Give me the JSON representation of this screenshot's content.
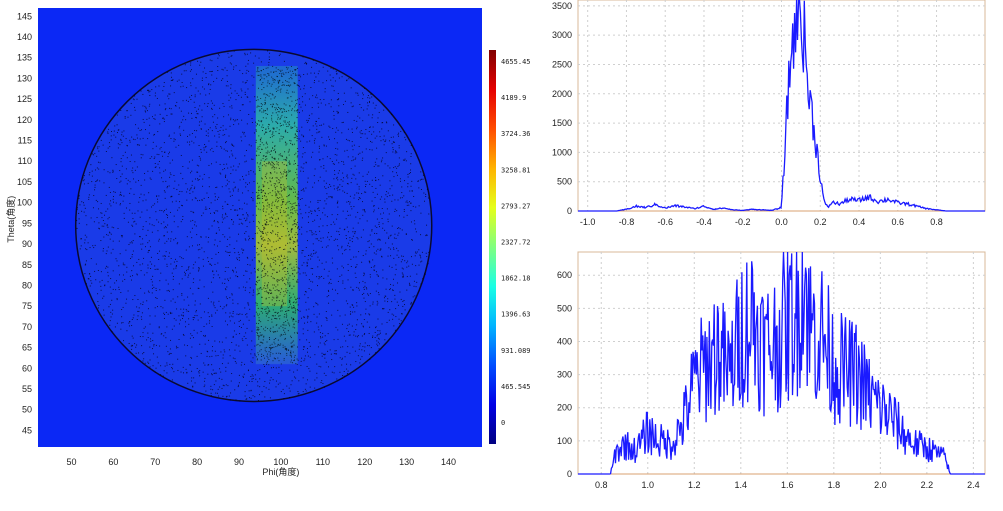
{
  "chart_data": [
    {
      "type": "heatmap",
      "title": "",
      "xlabel": "Phi(角度)",
      "ylabel": "Theta(角度)",
      "xlim": [
        42,
        148
      ],
      "ylim": [
        41,
        147
      ],
      "x_ticks": [
        50,
        60,
        70,
        80,
        90,
        100,
        110,
        120,
        130,
        140
      ],
      "y_ticks": [
        45,
        50,
        55,
        60,
        65,
        70,
        75,
        80,
        85,
        90,
        95,
        100,
        105,
        110,
        115,
        120,
        125,
        130,
        135,
        140,
        145
      ],
      "background_color": "#0b28f5",
      "disk": {
        "center_phi": 93.5,
        "center_theta": 94.5,
        "radius": 42.5
      },
      "band": {
        "phi_min": 94,
        "phi_max": 104,
        "theta_min": 61,
        "theta_max": 133
      },
      "colorbar": {
        "ticks": [
          "4655.45",
          "4189.9",
          "3724.36",
          "3258.81",
          "2793.27",
          "2327.72",
          "1862.18",
          "1396.63",
          "931.089",
          "465.545",
          "0"
        ],
        "min": 0,
        "max": 4655.45
      }
    },
    {
      "type": "line",
      "title": "",
      "xlabel": "",
      "ylabel": "",
      "xlim": [
        -1.05,
        1.05
      ],
      "ylim": [
        0,
        3600
      ],
      "x_ticks": [
        "-1.0",
        "-0.8",
        "-0.6",
        "-0.4",
        "-0.2",
        "0.0",
        "0.2",
        "0.4",
        "0.6",
        "0.8"
      ],
      "y_ticks": [
        "0",
        "500",
        "1000",
        "1500",
        "2000",
        "2500",
        "3000",
        "3500"
      ],
      "grid": true,
      "line_color": "#1a1aff",
      "series": [
        {
          "name": "",
          "x": [
            -1.0,
            -0.85,
            -0.8,
            -0.75,
            -0.7,
            -0.65,
            -0.6,
            -0.55,
            -0.5,
            -0.45,
            -0.4,
            -0.35,
            -0.3,
            -0.25,
            -0.2,
            -0.15,
            -0.1,
            -0.05,
            0.0,
            0.02,
            0.04,
            0.06,
            0.08,
            0.09,
            0.1,
            0.11,
            0.12,
            0.14,
            0.16,
            0.18,
            0.2,
            0.22,
            0.24,
            0.26,
            0.3,
            0.35,
            0.4,
            0.45,
            0.5,
            0.55,
            0.6,
            0.65,
            0.7,
            0.75,
            0.8,
            0.85,
            1.0
          ],
          "values": [
            0,
            0,
            30,
            80,
            60,
            110,
            50,
            90,
            70,
            40,
            80,
            30,
            50,
            20,
            10,
            30,
            20,
            10,
            60,
            1200,
            2300,
            3000,
            3350,
            3600,
            3400,
            3100,
            2900,
            2000,
            1600,
            1100,
            600,
            150,
            60,
            150,
            120,
            200,
            180,
            240,
            160,
            200,
            140,
            120,
            80,
            40,
            20,
            0,
            0
          ]
        }
      ]
    },
    {
      "type": "line",
      "title": "",
      "xlabel": "",
      "ylabel": "",
      "xlim": [
        0.7,
        2.45
      ],
      "ylim": [
        0,
        670
      ],
      "x_ticks": [
        "0.8",
        "1.0",
        "1.2",
        "1.4",
        "1.6",
        "1.8",
        "2.0",
        "2.2",
        "2.4"
      ],
      "y_ticks": [
        "0",
        "100",
        "200",
        "300",
        "400",
        "500",
        "600"
      ],
      "grid": true,
      "line_color": "#1a1aff",
      "series": [
        {
          "name": "",
          "x": [
            0.7,
            0.84,
            0.86,
            0.9,
            0.95,
            1.0,
            1.05,
            1.1,
            1.15,
            1.2,
            1.25,
            1.3,
            1.35,
            1.4,
            1.45,
            1.5,
            1.55,
            1.6,
            1.65,
            1.66,
            1.7,
            1.75,
            1.8,
            1.85,
            1.9,
            1.95,
            2.0,
            2.05,
            2.1,
            2.15,
            2.2,
            2.25,
            2.28,
            2.3,
            2.45
          ],
          "values": [
            0,
            0,
            60,
            90,
            70,
            130,
            100,
            90,
            150,
            280,
            330,
            380,
            300,
            430,
            470,
            380,
            400,
            450,
            500,
            660,
            440,
            420,
            330,
            310,
            300,
            240,
            200,
            170,
            120,
            90,
            80,
            60,
            50,
            0,
            0
          ]
        }
      ]
    }
  ]
}
